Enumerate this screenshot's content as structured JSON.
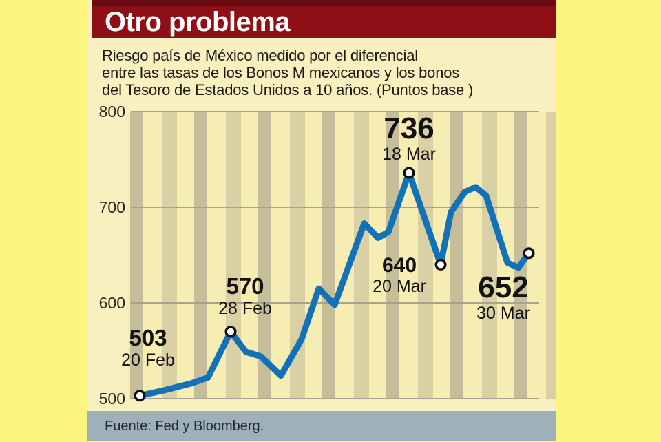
{
  "header": {
    "title": "Otro problema",
    "bar_color": "#8e1016",
    "bar_top_color": "#690b10",
    "text_color": "#ffffff"
  },
  "subtitle": {
    "lines": [
      "Riesgo país de México medido por el diferencial",
      "entre las tasas de los Bonos M mexicanos y los bonos",
      "del Tesoro de Estados Unidos a 10 años. (Puntos base )"
    ]
  },
  "footer": {
    "source": "Fuente: Fed y Bloomberg.",
    "bar_color": "#9eb0ba"
  },
  "colors": {
    "page_background": "#fbf580",
    "panel_background": "#f8f0bf",
    "band_light": "#f5edb2",
    "band_dark": "#c6be99",
    "band_medium": "#d9d0a6",
    "gridline": "#a8a295",
    "line_blue": "#1372b7",
    "marker_fill": "#ffffff",
    "marker_stroke": "#0d0d0d"
  },
  "chart_data": {
    "type": "line",
    "title": "Otro problema",
    "subtitle": "Riesgo país de México medido por el diferencial entre las tasas de los Bonos M mexicanos y los bonos del Tesoro de Estados Unidos a 10 años. (Puntos base )",
    "source": "Fuente: Fed y Bloomberg.",
    "ylim": [
      500,
      800
    ],
    "yticks": [
      "800",
      "700",
      "600",
      "500"
    ],
    "grid": "horizontal",
    "legend": "none",
    "x_unit": "px offset inside plot area (time axis, 20 Feb to 30 Mar)",
    "series": [
      {
        "name": "Riesgo país México (puntos base)",
        "points": [
          {
            "x": 18,
            "v": 503
          },
          {
            "x": 55,
            "v": 509
          },
          {
            "x": 93,
            "v": 516
          },
          {
            "x": 117,
            "v": 522
          },
          {
            "x": 150,
            "v": 570
          },
          {
            "x": 172,
            "v": 549
          },
          {
            "x": 194,
            "v": 544
          },
          {
            "x": 223,
            "v": 524
          },
          {
            "x": 253,
            "v": 562
          },
          {
            "x": 278,
            "v": 615
          },
          {
            "x": 301,
            "v": 598
          },
          {
            "x": 344,
            "v": 683
          },
          {
            "x": 364,
            "v": 668
          },
          {
            "x": 379,
            "v": 674
          },
          {
            "x": 409,
            "v": 736
          },
          {
            "x": 455,
            "v": 640
          },
          {
            "x": 470,
            "v": 695
          },
          {
            "x": 490,
            "v": 716
          },
          {
            "x": 506,
            "v": 721
          },
          {
            "x": 521,
            "v": 712
          },
          {
            "x": 552,
            "v": 642
          },
          {
            "x": 568,
            "v": 637
          },
          {
            "x": 583,
            "v": 652
          }
        ]
      }
    ],
    "marker_point_indices": [
      0,
      4,
      14,
      15,
      22
    ],
    "annotations": [
      {
        "value": "503",
        "date": "20 Feb"
      },
      {
        "value": "570",
        "date": "28 Feb"
      },
      {
        "value": "736",
        "date": "18 Mar"
      },
      {
        "value": "640",
        "date": "20 Mar"
      },
      {
        "value": "652",
        "date": "30 Mar"
      }
    ]
  }
}
